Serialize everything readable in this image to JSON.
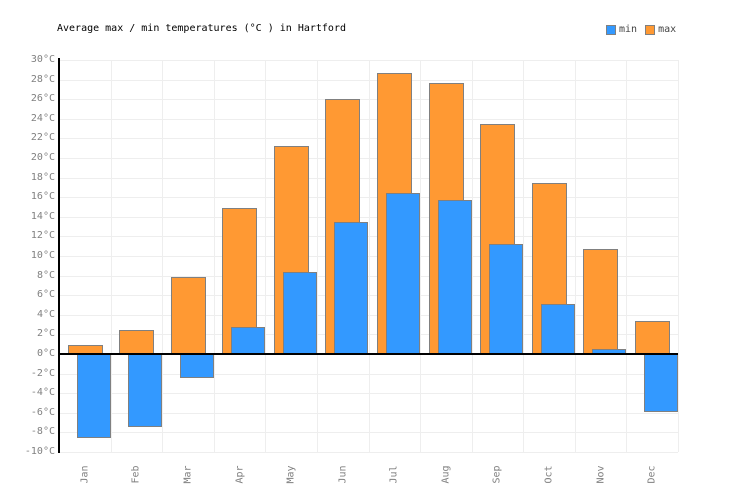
{
  "header": {
    "title": "Average max / min temperatures (°C ) in Hartford"
  },
  "legend": {
    "items": [
      {
        "label": "min",
        "color": "#3399ff"
      },
      {
        "label": "max",
        "color": "#ff9933"
      }
    ]
  },
  "chart_data": {
    "type": "bar",
    "title": "Average max / min temperatures (°C ) in Hartford",
    "categories": [
      "Jan",
      "Feb",
      "Mar",
      "Apr",
      "May",
      "Jun",
      "Jul",
      "Aug",
      "Sep",
      "Oct",
      "Nov",
      "Dec"
    ],
    "series": [
      {
        "name": "min",
        "color": "#3399ff",
        "values": [
          -8.6,
          -7.4,
          -2.4,
          2.8,
          8.4,
          13.5,
          16.4,
          15.7,
          11.2,
          5.1,
          0.5,
          -5.9
        ]
      },
      {
        "name": "max",
        "color": "#ff9933",
        "values": [
          0.9,
          2.4,
          7.9,
          14.9,
          21.2,
          26.0,
          28.7,
          27.7,
          23.5,
          17.5,
          10.7,
          3.4
        ]
      }
    ],
    "xlabel": "",
    "ylabel": "",
    "ylim": [
      -10,
      30
    ],
    "ytick_step": 2,
    "yticks": [
      {
        "value": 30,
        "label": "30°C"
      },
      {
        "value": 28,
        "label": "28°C"
      },
      {
        "value": 26,
        "label": "26°C"
      },
      {
        "value": 24,
        "label": "24°C"
      },
      {
        "value": 22,
        "label": "22°C"
      },
      {
        "value": 20,
        "label": "20°C"
      },
      {
        "value": 18,
        "label": "18°C"
      },
      {
        "value": 16,
        "label": "16°C"
      },
      {
        "value": 14,
        "label": "14°C"
      },
      {
        "value": 12,
        "label": "12°C"
      },
      {
        "value": 10,
        "label": "10°C"
      },
      {
        "value": 8,
        "label": "8°C"
      },
      {
        "value": 6,
        "label": "6°C"
      },
      {
        "value": 4,
        "label": "4°C"
      },
      {
        "value": 2,
        "label": "2°C"
      },
      {
        "value": 0,
        "label": "0°C"
      },
      {
        "value": -2,
        "label": "-2°C"
      },
      {
        "value": -4,
        "label": "-4°C"
      },
      {
        "value": -6,
        "label": "-6°C"
      },
      {
        "value": -8,
        "label": "-8°C"
      },
      {
        "value": -10,
        "label": "-10°C"
      }
    ],
    "grid": true,
    "legend_position": "top-right",
    "colors": {
      "min_bar": "#3399ff",
      "max_bar": "#ff9933",
      "bar_border": "#808080",
      "gridline": "#eeeeee",
      "axis_line": "#000000",
      "tick_label": "#808080",
      "title_text": "#000000",
      "background": "#ffffff"
    }
  }
}
